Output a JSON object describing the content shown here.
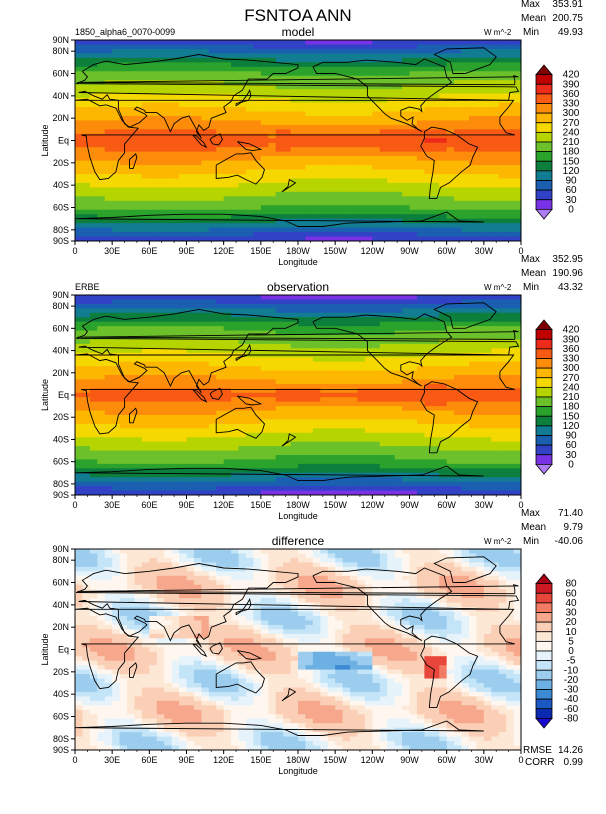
{
  "page_title": "FSNTOA ANN",
  "axis_common": {
    "xlabel": "Longitude",
    "ylabel": "Latitude",
    "x_ticks": [
      "0",
      "30E",
      "60E",
      "90E",
      "120E",
      "150E",
      "180W",
      "150W",
      "120W",
      "90W",
      "60W",
      "30W",
      "0"
    ],
    "y_ticks": [
      "90N",
      "80N",
      "60N",
      "40N",
      "20N",
      "Eq",
      "20S",
      "40S",
      "60S",
      "80S",
      "90S"
    ]
  },
  "chart_data": [
    {
      "type": "heatmap",
      "title": "model",
      "case_label": "1850_alpha6_0070-0099",
      "units": "W m^-2",
      "stats": {
        "max": "353.91",
        "mean": "200.75",
        "min": "49.93"
      },
      "stat_labels": {
        "max": "Max",
        "mean": "Mean",
        "min": "Min"
      },
      "xlabel": "Longitude",
      "ylabel": "Latitude",
      "xlim": [
        0,
        360
      ],
      "ylim": [
        -90,
        90
      ],
      "colorbar": {
        "levels": [
          "420",
          "390",
          "360",
          "330",
          "300",
          "270",
          "240",
          "210",
          "180",
          "150",
          "120",
          "90",
          "60",
          "30",
          "0"
        ],
        "colors": [
          "#7f0000",
          "#bf0000",
          "#ee2a1a",
          "#f85a14",
          "#fc8c0a",
          "#fdb700",
          "#f5d800",
          "#b6d400",
          "#6cc12b",
          "#2aa22c",
          "#0d7f3d",
          "#127c92",
          "#1a5fb0",
          "#3242c6",
          "#7a32e6",
          "#b07cf5"
        ]
      }
    },
    {
      "type": "heatmap",
      "title": "observation",
      "case_label": "ERBE",
      "units": "W m^-2",
      "stats": {
        "max": "352.95",
        "mean": "190.96",
        "min": "43.32"
      },
      "stat_labels": {
        "max": "Max",
        "mean": "Mean",
        "min": "Min"
      },
      "xlabel": "Longitude",
      "ylabel": "Latitude",
      "xlim": [
        0,
        360
      ],
      "ylim": [
        -90,
        90
      ],
      "colorbar": {
        "levels": [
          "420",
          "390",
          "360",
          "330",
          "300",
          "270",
          "240",
          "210",
          "180",
          "150",
          "120",
          "90",
          "60",
          "30",
          "0"
        ],
        "colors": [
          "#7f0000",
          "#bf0000",
          "#ee2a1a",
          "#f85a14",
          "#fc8c0a",
          "#fdb700",
          "#f5d800",
          "#b6d400",
          "#6cc12b",
          "#2aa22c",
          "#0d7f3d",
          "#127c92",
          "#1a5fb0",
          "#3242c6",
          "#7a32e6",
          "#b07cf5"
        ]
      }
    },
    {
      "type": "heatmap",
      "title": "difference",
      "case_label": "",
      "units": "W m^-2",
      "stats": {
        "max": "71.40",
        "mean": "9.79",
        "min": "-40.06"
      },
      "stat_labels": {
        "max": "Max",
        "mean": "Mean",
        "min": "Min"
      },
      "extra_stats": {
        "rmse_label": "RMSE",
        "rmse": "14.26",
        "corr_label": "CORR",
        "corr": "0.99"
      },
      "xlabel": "Longitude",
      "ylabel": "Latitude",
      "xlim": [
        0,
        360
      ],
      "ylim": [
        -90,
        90
      ],
      "colorbar": {
        "levels": [
          "80",
          "60",
          "40",
          "30",
          "20",
          "10",
          "5",
          "0",
          "-5",
          "-10",
          "-20",
          "-30",
          "-40",
          "-60",
          "-80"
        ],
        "colors": [
          "#a50014",
          "#cc1a22",
          "#e8463a",
          "#f27b63",
          "#f7a78c",
          "#fbcfb6",
          "#fde8d6",
          "#fff7ef",
          "#e6f3fb",
          "#c4e4f7",
          "#9ccdef",
          "#6cb0e4",
          "#3c8ad4",
          "#1a58c4",
          "#0a2ab4",
          "#1a0ad0"
        ]
      }
    }
  ]
}
